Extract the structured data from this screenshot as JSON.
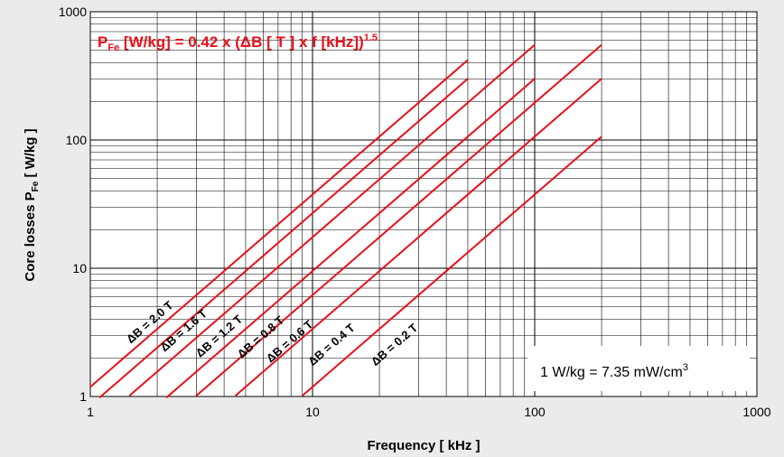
{
  "chart_data": {
    "type": "line",
    "x_scale": "log",
    "y_scale": "log",
    "xlim": [
      1,
      1000
    ],
    "ylim": [
      1,
      1000
    ],
    "xticks": [
      "1",
      "10",
      "100",
      "1000"
    ],
    "yticks": [
      "1",
      "10",
      "100",
      "1000"
    ],
    "xlabel": "Frequency [ kHz ]",
    "ylabel_main": "Core losses P",
    "ylabel_sub": "Fe",
    "ylabel_tail": " [ W/kg ]",
    "grid": true,
    "formula": {
      "p": "P",
      "p_sub": "Fe",
      "body": " [W/kg] = 0.42 x (ΔB [ T ] x f [kHz])",
      "exp": "1.5"
    },
    "note": {
      "text": "1 W/kg = 7.35 mW/cm",
      "sup": "3"
    },
    "line_color": "#e8101a",
    "series": [
      {
        "name": "ΔB = 2.0 T",
        "deltaB": 2.0,
        "f_range": [
          1,
          50
        ]
      },
      {
        "name": "ΔB = 1.6 T",
        "deltaB": 1.6,
        "f_range": [
          1.1,
          50
        ]
      },
      {
        "name": "ΔB = 1.2 T",
        "deltaB": 1.2,
        "f_range": [
          1.5,
          100
        ]
      },
      {
        "name": "ΔB = 0.8 T",
        "deltaB": 0.8,
        "f_range": [
          2.2,
          100
        ]
      },
      {
        "name": "ΔB = 0.6 T",
        "deltaB": 0.6,
        "f_range": [
          3,
          200
        ]
      },
      {
        "name": "ΔB = 0.4 T",
        "deltaB": 0.4,
        "f_range": [
          4.5,
          200
        ]
      },
      {
        "name": "ΔB = 0.2 T",
        "deltaB": 0.2,
        "f_range": [
          9,
          200
        ]
      }
    ],
    "label_positions": [
      {
        "f": 1.9,
        "y": 3.6
      },
      {
        "f": 2.7,
        "y": 3.1
      },
      {
        "f": 3.9,
        "y": 2.8
      },
      {
        "f": 6.0,
        "y": 2.75
      },
      {
        "f": 8.1,
        "y": 2.55
      },
      {
        "f": 12.5,
        "y": 2.4
      },
      {
        "f": 24,
        "y": 2.4
      }
    ]
  }
}
